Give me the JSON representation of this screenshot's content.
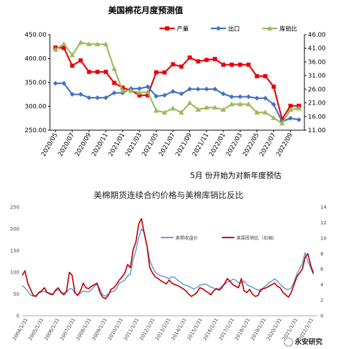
{
  "top_title": "美国棉花月度预测值",
  "note": "5月 份开始为对新年度预估",
  "watermark": "永安研究",
  "colors": {
    "production": "#e8000b",
    "export": "#4472c4",
    "stock_ratio": "#9bbb59",
    "futures_price": "#5b9bd5",
    "ratio_long": "#c00000"
  },
  "chart_data": [
    {
      "type": "line",
      "title": "美国棉花月度预测值",
      "x": [
        "2020/05",
        "2020/06",
        "2020/07",
        "2020/08",
        "2020/09",
        "2020/10",
        "2020/11",
        "2020/12",
        "2021/01",
        "2021/02",
        "2021/03",
        "2021/04",
        "2021/05",
        "2021/06",
        "2021/07",
        "2021/08",
        "2021/09",
        "2021/10",
        "2021/11",
        "2021/12",
        "2022/01",
        "2022/02",
        "2022/03",
        "2022/04",
        "2022/05",
        "2022/06",
        "2022/07",
        "2022/08",
        "2022/09",
        "2022/10"
      ],
      "x_tick_labels": [
        "2020/05",
        "2020/07",
        "2020/09",
        "2020/11",
        "2021/01",
        "2021/03",
        "2021/05",
        "2021/07",
        "2021/09",
        "2021/11",
        "2022/01",
        "2022/03",
        "2022/05",
        "2022/07",
        "2022/09"
      ],
      "ylim_left": [
        250,
        450
      ],
      "ytick_labels_left": [
        "250.00",
        "300.00",
        "350.00",
        "400.00",
        "450.00"
      ],
      "ylim_right": [
        11,
        46
      ],
      "ytick_labels_right": [
        "11.00",
        "16.00",
        "21.00",
        "26.00",
        "31.00",
        "36.00",
        "41.00",
        "46.00"
      ],
      "legend_position": "top",
      "grid": false,
      "series": [
        {
          "name": "产量",
          "axis": "left",
          "color": "#e8000b",
          "values": [
            423,
            422,
            385,
            396,
            372,
            372,
            372,
            349,
            339,
            333,
            323,
            323,
            371,
            371,
            388,
            383,
            402,
            394,
            397,
            399,
            387,
            387,
            387,
            387,
            363,
            363,
            341,
            273,
            301,
            301
          ]
        },
        {
          "name": "出口",
          "axis": "left",
          "color": "#4472c4",
          "values": [
            348,
            348,
            325,
            325,
            318,
            318,
            318,
            328,
            328,
            337,
            337,
            341,
            321,
            323,
            331,
            326,
            336,
            336,
            336,
            336,
            326,
            320,
            320,
            320,
            317,
            317,
            304,
            268,
            275,
            272
          ]
        },
        {
          "name": "库销比",
          "axis": "right",
          "color": "#9bbb59",
          "values": [
            40.5,
            42.6,
            38.5,
            43.1,
            42.5,
            42.5,
            42.5,
            33.5,
            25.5,
            25.5,
            24.8,
            25.0,
            18.2,
            17.5,
            19.0,
            17.5,
            21.0,
            18.5,
            19.3,
            19.3,
            18.5,
            20.5,
            20.5,
            20.5,
            17.5,
            17.5,
            15.5,
            13.5,
            18.5,
            19.0
          ]
        }
      ]
    },
    {
      "type": "line",
      "title": "美棉期货连续合约价格与美棉库销比反比",
      "x_tick_labels": [
        "2004/1/31",
        "2005/1/31",
        "2006/1/31",
        "2007/1/31",
        "2008/1/31",
        "2009/1/31",
        "2010/1/31",
        "2011/1/31",
        "2012/1/31",
        "2013/1/31",
        "2014/1/31",
        "2015/1/31",
        "2016/1/31",
        "2017/1/31",
        "2018/1/31",
        "2019/1/31",
        "2020/1/31",
        "2021/1/31",
        "2022/1/31"
      ],
      "ylim_left": [
        0,
        250
      ],
      "ytick_labels_left": [
        "0",
        "50",
        "100",
        "150",
        "200",
        "250"
      ],
      "ylim_right": [
        0,
        14
      ],
      "ytick_labels_right": [
        "0",
        "2",
        "4",
        "6",
        "8",
        "10",
        "12",
        "14"
      ],
      "legend_position": "top-center",
      "grid": false,
      "series": [
        {
          "name": "美棉收盘价",
          "axis": "left",
          "color": "#5b9bd5",
          "values": [
            70,
            64,
            56,
            48,
            45,
            47,
            52,
            55,
            56,
            53,
            52,
            50,
            56,
            60,
            55,
            52,
            54,
            62,
            62,
            52,
            48,
            52,
            57,
            55,
            55,
            60,
            68,
            72,
            62,
            48,
            45,
            50,
            55,
            56,
            62,
            75,
            78,
            82,
            92,
            95,
            130,
            150,
            180,
            200,
            192,
            160,
            128,
            112,
            100,
            95,
            92,
            90,
            88,
            85,
            90,
            88,
            82,
            78,
            72,
            70,
            68,
            64,
            62,
            65,
            70,
            72,
            73,
            70,
            66,
            64,
            60,
            62,
            68,
            72,
            78,
            80,
            84,
            82,
            76,
            75,
            80,
            72,
            68,
            66,
            62,
            60,
            55,
            65,
            70,
            75,
            80,
            85,
            80,
            72,
            66,
            62,
            60,
            64,
            78,
            95,
            108,
            120,
            145,
            125,
            110,
            95
          ]
        },
        {
          "name": "美国库销比（右轴）",
          "axis": "right",
          "color": "#c00000",
          "values": [
            5.2,
            5.8,
            4.2,
            3.4,
            2.6,
            2.5,
            3.0,
            3.2,
            3.6,
            3.0,
            2.8,
            2.7,
            3.3,
            3.6,
            3.0,
            2.7,
            3.2,
            5.6,
            5.2,
            3.0,
            2.6,
            3.2,
            4.2,
            3.6,
            3.5,
            3.8,
            4.0,
            4.2,
            3.0,
            2.4,
            2.2,
            2.6,
            3.4,
            3.6,
            4.0,
            4.6,
            5.0,
            5.5,
            6.6,
            6.2,
            8.5,
            9.5,
            11.8,
            12.5,
            10.6,
            9.0,
            6.2,
            5.5,
            5.0,
            4.8,
            4.5,
            4.3,
            4.1,
            4.6,
            4.2,
            4.0,
            3.9,
            3.7,
            3.5,
            3.2,
            2.8,
            2.5,
            2.7,
            3.0,
            3.6,
            3.5,
            3.2,
            3.0,
            2.7,
            3.2,
            3.5,
            3.3,
            3.6,
            4.2,
            4.8,
            4.4,
            4.0,
            3.8,
            3.6,
            4.8,
            3.2,
            3.0,
            3.4,
            2.8,
            2.5,
            2.6,
            3.4,
            3.5,
            3.6,
            3.8,
            4.0,
            4.2,
            3.8,
            3.6,
            3.0,
            2.7,
            2.4,
            3.0,
            4.0,
            5.0,
            5.5,
            6.0,
            7.5,
            8.0,
            6.5,
            5.5
          ]
        }
      ]
    }
  ]
}
